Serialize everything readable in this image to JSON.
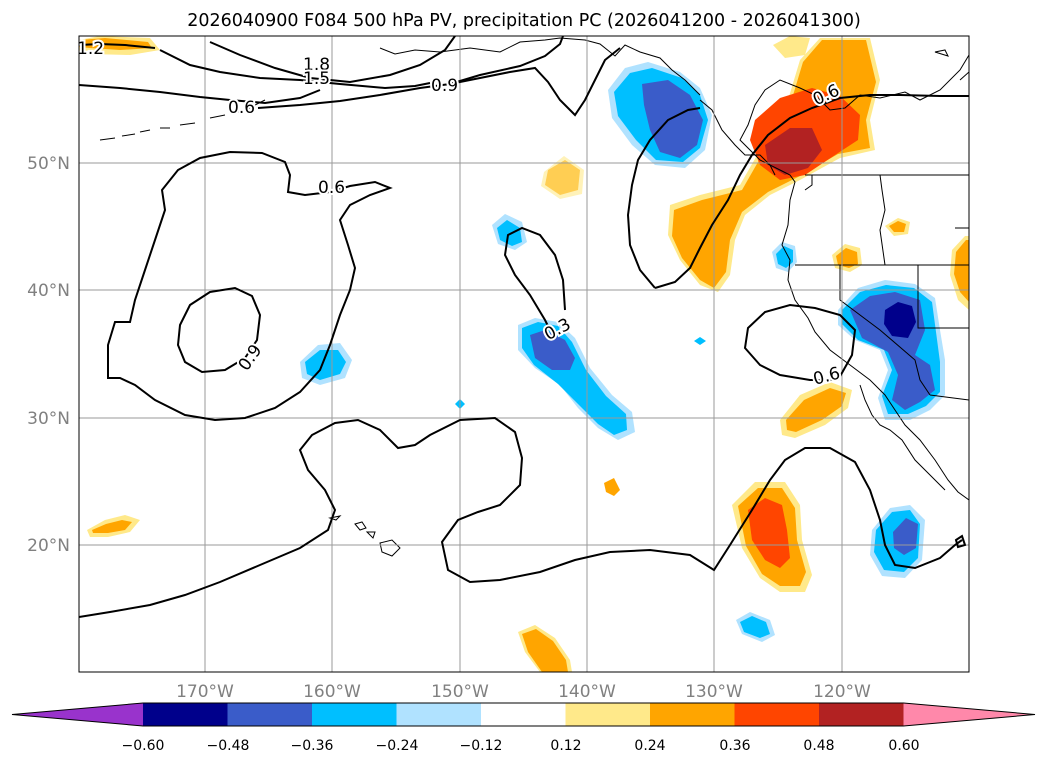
{
  "title": "2026040900 F084 500 hPa PV, precipitation PC (2026041200 - 2026041300)",
  "lat_labels": [
    "50°N",
    "40°N",
    "30°N",
    "20°N"
  ],
  "lon_labels": [
    "170°W",
    "160°W",
    "150°W",
    "140°W",
    "130°W",
    "120°W"
  ],
  "contour_labels": [
    "1.2",
    "1.8",
    "1.5",
    "0.9",
    "0.6",
    "0.6",
    "0.6",
    "0.9",
    "0.3",
    "0.6"
  ],
  "colorbar": {
    "ticks": [
      "−0.60",
      "−0.48",
      "−0.36",
      "−0.24",
      "−0.12",
      "0.12",
      "0.24",
      "0.36",
      "0.48",
      "0.60"
    ],
    "colors": [
      "#9933cc",
      "#00008b",
      "#3a5cc9",
      "#00bfff",
      "#b0e2ff",
      "#ffffff",
      "#ffe98a",
      "#ffa500",
      "#ff4500",
      "#b22222",
      "#ff88aa"
    ]
  }
}
